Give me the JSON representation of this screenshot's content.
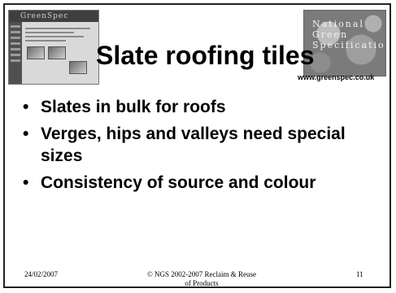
{
  "slide": {
    "title": "Slate roofing tiles",
    "url": "www.greenspec.co.uk",
    "thumbnail": {
      "banner": "GreenSpec"
    },
    "logo": {
      "lines": [
        "National",
        "Green",
        "Specification"
      ]
    },
    "bullets": [
      "Slates in bulk for roofs",
      "Verges, hips and valleys need special sizes",
      "Consistency of source and colour"
    ],
    "footer": {
      "date": "24/02/2007",
      "copyright_line1": "© NGS 2002-2007 Reclaim & Reuse",
      "copyright_line2": "of Products",
      "page_number": "11"
    }
  }
}
